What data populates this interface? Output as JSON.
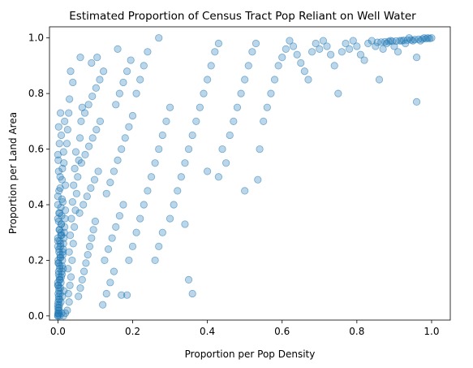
{
  "chart_data": {
    "type": "scatter",
    "title": "Estimated Proportion of Census Tract Pop Reliant on Well Water",
    "xlabel": "Proportion per Pop Density",
    "ylabel": "Proportion per Land Area",
    "xlim": [
      -0.0225,
      1.05
    ],
    "ylim": [
      -0.015,
      1.04
    ],
    "x_ticks": [
      0.0,
      0.2,
      0.4,
      0.6,
      0.8,
      1.0
    ],
    "y_ticks": [
      0.0,
      0.2,
      0.4,
      0.6,
      0.8,
      1.0
    ],
    "x_tick_labels": [
      "0.0",
      "0.2",
      "0.4",
      "0.6",
      "0.8",
      "1.0"
    ],
    "y_tick_labels": [
      "0.0",
      "0.2",
      "0.4",
      "0.6",
      "0.8",
      "1.0"
    ],
    "grid": false,
    "legend": "none",
    "marker_color": "#1f77b4",
    "marker_alpha": 0.3,
    "points": [
      [
        0.0,
        0.0
      ],
      [
        0.001,
        0.005
      ],
      [
        0.002,
        0.01
      ],
      [
        0.003,
        0.02
      ],
      [
        0.0,
        0.03
      ],
      [
        0.004,
        0.04
      ],
      [
        0.001,
        0.05
      ],
      [
        0.005,
        0.06
      ],
      [
        0.002,
        0.07
      ],
      [
        0.006,
        0.08
      ],
      [
        0.003,
        0.09
      ],
      [
        0.007,
        0.1
      ],
      [
        0.0,
        0.11
      ],
      [
        0.008,
        0.12
      ],
      [
        0.004,
        0.13
      ],
      [
        0.009,
        0.14
      ],
      [
        0.002,
        0.15
      ],
      [
        0.01,
        0.16
      ],
      [
        0.005,
        0.17
      ],
      [
        0.011,
        0.18
      ],
      [
        0.001,
        0.19
      ],
      [
        0.012,
        0.2
      ],
      [
        0.006,
        0.21
      ],
      [
        0.013,
        0.22
      ],
      [
        0.003,
        0.23
      ],
      [
        0.014,
        0.24
      ],
      [
        0.007,
        0.25
      ],
      [
        0.015,
        0.26
      ],
      [
        0.0,
        0.27
      ],
      [
        0.016,
        0.28
      ],
      [
        0.008,
        0.29
      ],
      [
        0.017,
        0.3
      ],
      [
        0.004,
        0.31
      ],
      [
        0.018,
        0.32
      ],
      [
        0.009,
        0.33
      ],
      [
        0.002,
        0.34
      ],
      [
        0.019,
        0.35
      ],
      [
        0.01,
        0.36
      ],
      [
        0.005,
        0.37
      ],
      [
        0.02,
        0.38
      ],
      [
        0.0,
        0.4
      ],
      [
        0.011,
        0.42
      ],
      [
        0.003,
        0.45
      ],
      [
        0.02,
        0.47
      ],
      [
        0.006,
        0.5
      ],
      [
        0.012,
        0.53
      ],
      [
        0.001,
        0.56
      ],
      [
        0.015,
        0.59
      ],
      [
        0.004,
        0.62
      ],
      [
        0.009,
        0.65
      ],
      [
        0.002,
        0.68
      ],
      [
        0.018,
        0.7
      ],
      [
        0.007,
        0.73
      ],
      [
        0.0,
        0.0
      ],
      [
        0.0,
        0.01
      ],
      [
        0.001,
        0.02
      ],
      [
        0.0,
        0.04
      ],
      [
        0.002,
        0.06
      ],
      [
        0.001,
        0.08
      ],
      [
        0.003,
        0.1
      ],
      [
        0.0,
        0.12
      ],
      [
        0.004,
        0.14
      ],
      [
        0.002,
        0.16
      ],
      [
        0.005,
        0.18
      ],
      [
        0.001,
        0.2
      ],
      [
        0.006,
        0.22
      ],
      [
        0.003,
        0.24
      ],
      [
        0.007,
        0.26
      ],
      [
        0.0,
        0.28
      ],
      [
        0.008,
        0.3
      ],
      [
        0.025,
        0.02
      ],
      [
        0.03,
        0.05
      ],
      [
        0.028,
        0.08
      ],
      [
        0.032,
        0.11
      ],
      [
        0.035,
        0.14
      ],
      [
        0.027,
        0.17
      ],
      [
        0.038,
        0.2
      ],
      [
        0.03,
        0.23
      ],
      [
        0.041,
        0.26
      ],
      [
        0.033,
        0.29
      ],
      [
        0.044,
        0.32
      ],
      [
        0.036,
        0.35
      ],
      [
        0.047,
        0.38
      ],
      [
        0.039,
        0.41
      ],
      [
        0.05,
        0.44
      ],
      [
        0.042,
        0.47
      ],
      [
        0.053,
        0.5
      ],
      [
        0.045,
        0.53
      ],
      [
        0.056,
        0.56
      ],
      [
        0.048,
        0.59
      ],
      [
        0.024,
        0.62
      ],
      [
        0.059,
        0.64
      ],
      [
        0.026,
        0.67
      ],
      [
        0.062,
        0.7
      ],
      [
        0.029,
        0.73
      ],
      [
        0.065,
        0.75
      ],
      [
        0.031,
        0.78
      ],
      [
        0.034,
        0.88
      ],
      [
        0.06,
        0.93
      ],
      [
        0.04,
        0.84
      ],
      [
        0.055,
        0.07
      ],
      [
        0.06,
        0.1
      ],
      [
        0.065,
        0.13
      ],
      [
        0.07,
        0.16
      ],
      [
        0.075,
        0.19
      ],
      [
        0.08,
        0.22
      ],
      [
        0.085,
        0.25
      ],
      [
        0.09,
        0.28
      ],
      [
        0.095,
        0.31
      ],
      [
        0.1,
        0.34
      ],
      [
        0.058,
        0.37
      ],
      [
        0.068,
        0.4
      ],
      [
        0.078,
        0.43
      ],
      [
        0.088,
        0.46
      ],
      [
        0.098,
        0.49
      ],
      [
        0.108,
        0.52
      ],
      [
        0.063,
        0.55
      ],
      [
        0.073,
        0.58
      ],
      [
        0.083,
        0.61
      ],
      [
        0.093,
        0.64
      ],
      [
        0.103,
        0.67
      ],
      [
        0.113,
        0.7
      ],
      [
        0.072,
        0.73
      ],
      [
        0.082,
        0.76
      ],
      [
        0.092,
        0.79
      ],
      [
        0.102,
        0.82
      ],
      [
        0.112,
        0.85
      ],
      [
        0.122,
        0.88
      ],
      [
        0.09,
        0.91
      ],
      [
        0.105,
        0.93
      ],
      [
        0.12,
        0.04
      ],
      [
        0.13,
        0.08
      ],
      [
        0.14,
        0.12
      ],
      [
        0.15,
        0.16
      ],
      [
        0.125,
        0.2
      ],
      [
        0.135,
        0.24
      ],
      [
        0.145,
        0.28
      ],
      [
        0.155,
        0.32
      ],
      [
        0.165,
        0.36
      ],
      [
        0.175,
        0.4
      ],
      [
        0.13,
        0.44
      ],
      [
        0.14,
        0.48
      ],
      [
        0.15,
        0.52
      ],
      [
        0.16,
        0.56
      ],
      [
        0.17,
        0.6
      ],
      [
        0.18,
        0.64
      ],
      [
        0.19,
        0.68
      ],
      [
        0.2,
        0.72
      ],
      [
        0.155,
        0.76
      ],
      [
        0.165,
        0.8
      ],
      [
        0.175,
        0.84
      ],
      [
        0.185,
        0.88
      ],
      [
        0.195,
        0.92
      ],
      [
        0.16,
        0.96
      ],
      [
        0.17,
        0.075
      ],
      [
        0.185,
        0.075
      ],
      [
        0.19,
        0.2
      ],
      [
        0.2,
        0.25
      ],
      [
        0.21,
        0.3
      ],
      [
        0.22,
        0.35
      ],
      [
        0.23,
        0.4
      ],
      [
        0.24,
        0.45
      ],
      [
        0.25,
        0.5
      ],
      [
        0.26,
        0.55
      ],
      [
        0.27,
        0.6
      ],
      [
        0.28,
        0.65
      ],
      [
        0.29,
        0.7
      ],
      [
        0.3,
        0.75
      ],
      [
        0.21,
        0.8
      ],
      [
        0.22,
        0.85
      ],
      [
        0.23,
        0.9
      ],
      [
        0.24,
        0.95
      ],
      [
        0.27,
        1.0
      ],
      [
        0.26,
        0.2
      ],
      [
        0.27,
        0.25
      ],
      [
        0.28,
        0.3
      ],
      [
        0.3,
        0.35
      ],
      [
        0.31,
        0.4
      ],
      [
        0.32,
        0.45
      ],
      [
        0.33,
        0.5
      ],
      [
        0.34,
        0.55
      ],
      [
        0.35,
        0.6
      ],
      [
        0.36,
        0.65
      ],
      [
        0.37,
        0.7
      ],
      [
        0.38,
        0.75
      ],
      [
        0.39,
        0.8
      ],
      [
        0.4,
        0.85
      ],
      [
        0.41,
        0.9
      ],
      [
        0.42,
        0.95
      ],
      [
        0.43,
        0.98
      ],
      [
        0.34,
        0.33
      ],
      [
        0.35,
        0.13
      ],
      [
        0.36,
        0.08
      ],
      [
        0.4,
        0.52
      ],
      [
        0.43,
        0.5
      ],
      [
        0.44,
        0.6
      ],
      [
        0.45,
        0.55
      ],
      [
        0.46,
        0.65
      ],
      [
        0.47,
        0.7
      ],
      [
        0.48,
        0.75
      ],
      [
        0.49,
        0.8
      ],
      [
        0.5,
        0.85
      ],
      [
        0.51,
        0.9
      ],
      [
        0.52,
        0.95
      ],
      [
        0.53,
        0.98
      ],
      [
        0.5,
        0.45
      ],
      [
        0.535,
        0.49
      ],
      [
        0.54,
        0.6
      ],
      [
        0.55,
        0.7
      ],
      [
        0.56,
        0.75
      ],
      [
        0.57,
        0.8
      ],
      [
        0.58,
        0.85
      ],
      [
        0.59,
        0.9
      ],
      [
        0.6,
        0.93
      ],
      [
        0.61,
        0.96
      ],
      [
        0.62,
        0.99
      ],
      [
        0.63,
        0.97
      ],
      [
        0.64,
        0.94
      ],
      [
        0.65,
        0.91
      ],
      [
        0.66,
        0.88
      ],
      [
        0.67,
        0.85
      ],
      [
        0.68,
        0.95
      ],
      [
        0.69,
        0.98
      ],
      [
        0.7,
        0.96
      ],
      [
        0.71,
        0.99
      ],
      [
        0.72,
        0.97
      ],
      [
        0.73,
        0.94
      ],
      [
        0.74,
        0.9
      ],
      [
        0.75,
        0.8
      ],
      [
        0.76,
        0.95
      ],
      [
        0.77,
        0.98
      ],
      [
        0.78,
        0.96
      ],
      [
        0.79,
        0.99
      ],
      [
        0.8,
        0.97
      ],
      [
        0.81,
        0.94
      ],
      [
        0.82,
        0.92
      ],
      [
        0.83,
        0.98
      ],
      [
        0.84,
        0.99
      ],
      [
        0.85,
        0.97
      ],
      [
        0.86,
        0.85
      ],
      [
        0.87,
        0.96
      ],
      [
        0.88,
        0.98
      ],
      [
        0.89,
        0.99
      ],
      [
        0.9,
        0.97
      ],
      [
        0.91,
        0.95
      ],
      [
        0.92,
        0.99
      ],
      [
        0.93,
        0.98
      ],
      [
        0.94,
        1.0
      ],
      [
        0.95,
        0.99
      ],
      [
        0.96,
        0.93
      ],
      [
        0.97,
        0.99
      ],
      [
        0.98,
        1.0
      ],
      [
        0.99,
        1.0
      ],
      [
        1.0,
        1.0
      ],
      [
        0.995,
        0.998
      ],
      [
        0.985,
        0.997
      ],
      [
        0.975,
        0.996
      ],
      [
        0.965,
        0.995
      ],
      [
        0.955,
        0.994
      ],
      [
        0.96,
        0.77
      ],
      [
        0.945,
        0.993
      ],
      [
        0.935,
        0.992
      ],
      [
        0.925,
        0.991
      ],
      [
        0.915,
        0.99
      ],
      [
        0.905,
        0.989
      ],
      [
        0.895,
        0.988
      ],
      [
        0.885,
        0.987
      ],
      [
        0.875,
        0.986
      ],
      [
        0.865,
        0.985
      ],
      [
        0.855,
        0.984
      ],
      [
        0.005,
        0.0
      ],
      [
        0.01,
        0.01
      ],
      [
        0.015,
        0.0
      ],
      [
        0.02,
        0.01
      ],
      [
        0.003,
        0.03
      ],
      [
        0.008,
        0.05
      ],
      [
        0.012,
        0.07
      ],
      [
        0.016,
        0.09
      ],
      [
        0.001,
        0.11
      ],
      [
        0.006,
        0.13
      ],
      [
        0.011,
        0.15
      ],
      [
        0.014,
        0.17
      ],
      [
        0.002,
        0.19
      ],
      [
        0.007,
        0.21
      ],
      [
        0.013,
        0.23
      ],
      [
        0.0,
        0.25
      ],
      [
        0.005,
        0.27
      ],
      [
        0.01,
        0.29
      ],
      [
        0.004,
        0.31
      ],
      [
        0.009,
        0.33
      ],
      [
        0.0,
        0.35
      ],
      [
        0.003,
        0.37
      ],
      [
        0.008,
        0.39
      ],
      [
        0.013,
        0.41
      ],
      [
        0.0,
        0.43
      ],
      [
        0.006,
        0.46
      ],
      [
        0.011,
        0.49
      ],
      [
        0.002,
        0.52
      ],
      [
        0.016,
        0.55
      ],
      [
        0.0,
        0.58
      ]
    ]
  }
}
